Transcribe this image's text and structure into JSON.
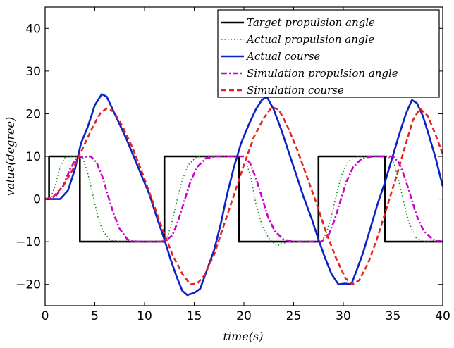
{
  "chart_data": {
    "type": "line",
    "xlabel": "time(s)",
    "ylabel": "value(degree)",
    "xlim": [
      0,
      40
    ],
    "ylim": [
      -25,
      45
    ],
    "x_ticks": [
      0,
      5,
      10,
      15,
      20,
      25,
      30,
      35,
      40
    ],
    "y_ticks": [
      -20,
      -10,
      0,
      10,
      20,
      30,
      40
    ],
    "x_tick_labels": [
      "0",
      "5",
      "10",
      "15",
      "20",
      "25",
      "30",
      "35",
      "40"
    ],
    "y_tick_labels": [
      "−20",
      "−10",
      "0",
      "10",
      "20",
      "30",
      "40"
    ],
    "legend_position": "top-right",
    "series": [
      {
        "name": "Target propulsion angle",
        "color": "#000000",
        "style": "solid",
        "points": [
          [
            0,
            0
          ],
          [
            0.4,
            0
          ],
          [
            0.4,
            10
          ],
          [
            3.5,
            10
          ],
          [
            3.5,
            -10
          ],
          [
            12,
            -10
          ],
          [
            12,
            10
          ],
          [
            19.5,
            10
          ],
          [
            19.5,
            -10
          ],
          [
            27.5,
            -10
          ],
          [
            27.5,
            10
          ],
          [
            34.2,
            10
          ],
          [
            34.2,
            -10
          ],
          [
            40,
            -10
          ]
        ]
      },
      {
        "name": "Actual propulsion angle",
        "color": "#1a8a1a",
        "style": "dotted",
        "points": [
          [
            0,
            0
          ],
          [
            0.6,
            0.5
          ],
          [
            1,
            3
          ],
          [
            1.5,
            7.5
          ],
          [
            2,
            9.8
          ],
          [
            3,
            10
          ],
          [
            3.8,
            9.6
          ],
          [
            4.3,
            6
          ],
          [
            4.8,
            1
          ],
          [
            5.3,
            -4
          ],
          [
            5.8,
            -7.5
          ],
          [
            6.5,
            -9.5
          ],
          [
            7.5,
            -10
          ],
          [
            11.5,
            -10
          ],
          [
            12.3,
            -9
          ],
          [
            12.8,
            -5
          ],
          [
            13.3,
            0
          ],
          [
            13.8,
            4.5
          ],
          [
            14.4,
            8
          ],
          [
            15.2,
            9.8
          ],
          [
            16,
            10
          ],
          [
            19.5,
            10
          ],
          [
            20.2,
            9
          ],
          [
            20.7,
            5
          ],
          [
            21.2,
            -1
          ],
          [
            21.8,
            -6
          ],
          [
            22.5,
            -9.2
          ],
          [
            23.3,
            -11
          ],
          [
            23.8,
            -10.5
          ],
          [
            24.5,
            -10
          ],
          [
            27.8,
            -10
          ],
          [
            28.3,
            -8
          ],
          [
            28.8,
            -4
          ],
          [
            29.3,
            1
          ],
          [
            29.8,
            5.5
          ],
          [
            30.5,
            8.8
          ],
          [
            31.3,
            10
          ],
          [
            34.5,
            10
          ],
          [
            35.1,
            8.5
          ],
          [
            35.6,
            4
          ],
          [
            36.1,
            -1
          ],
          [
            36.6,
            -5.5
          ],
          [
            37.3,
            -9
          ],
          [
            38.2,
            -10
          ],
          [
            40,
            -10
          ]
        ]
      },
      {
        "name": "Actual course",
        "color": "#0b22c4",
        "style": "solid",
        "points": [
          [
            0,
            0
          ],
          [
            1.5,
            0
          ],
          [
            2.3,
            2
          ],
          [
            3,
            7
          ],
          [
            3.6,
            13
          ],
          [
            4.3,
            17
          ],
          [
            5,
            22
          ],
          [
            5.7,
            24.6
          ],
          [
            6.2,
            24
          ],
          [
            6.8,
            21
          ],
          [
            7.5,
            17.5
          ],
          [
            8.2,
            14
          ],
          [
            9,
            9.5
          ],
          [
            9.7,
            5.5
          ],
          [
            10.5,
            1
          ],
          [
            11.2,
            -4
          ],
          [
            12,
            -9.5
          ],
          [
            12.6,
            -14
          ],
          [
            13.2,
            -18
          ],
          [
            13.8,
            -21.5
          ],
          [
            14.3,
            -22.5
          ],
          [
            15,
            -22
          ],
          [
            15.6,
            -21
          ],
          [
            16.3,
            -16.5
          ],
          [
            17,
            -12
          ],
          [
            17.7,
            -5.5
          ],
          [
            18.3,
            1
          ],
          [
            19,
            7.5
          ],
          [
            19.7,
            13
          ],
          [
            20.5,
            17.5
          ],
          [
            21.2,
            21
          ],
          [
            21.8,
            23.2
          ],
          [
            22.3,
            24
          ],
          [
            23,
            21
          ],
          [
            23.8,
            16
          ],
          [
            24.5,
            11
          ],
          [
            25.3,
            5.5
          ],
          [
            26,
            0.5
          ],
          [
            26.8,
            -4.5
          ],
          [
            27.5,
            -9.5
          ],
          [
            28.2,
            -14
          ],
          [
            28.8,
            -17.5
          ],
          [
            29.5,
            -20
          ],
          [
            30.2,
            -19.8
          ],
          [
            30.8,
            -20
          ],
          [
            31.3,
            -17
          ],
          [
            32,
            -12.5
          ],
          [
            32.7,
            -7
          ],
          [
            33.4,
            -1.5
          ],
          [
            34.2,
            4
          ],
          [
            34.9,
            9.5
          ],
          [
            35.6,
            15
          ],
          [
            36.3,
            20
          ],
          [
            36.9,
            23.2
          ],
          [
            37.4,
            22.5
          ],
          [
            38,
            19.5
          ],
          [
            38.6,
            15
          ],
          [
            39.3,
            9.5
          ],
          [
            40,
            3
          ]
        ]
      },
      {
        "name": "Simulation propulsion angle",
        "color": "#cc00cc",
        "style": "dashdot",
        "points": [
          [
            0,
            0
          ],
          [
            1,
            0.5
          ],
          [
            1.8,
            3
          ],
          [
            2.5,
            7
          ],
          [
            3.2,
            9.8
          ],
          [
            4.6,
            10
          ],
          [
            5.2,
            8.5
          ],
          [
            5.8,
            5
          ],
          [
            6.3,
            1
          ],
          [
            6.9,
            -3.5
          ],
          [
            7.5,
            -7
          ],
          [
            8.3,
            -9.5
          ],
          [
            9.3,
            -10
          ],
          [
            12,
            -10
          ],
          [
            12.8,
            -8.5
          ],
          [
            13.4,
            -5
          ],
          [
            14,
            -0.5
          ],
          [
            14.6,
            4
          ],
          [
            15.3,
            7.5
          ],
          [
            16.2,
            9.6
          ],
          [
            17.3,
            10
          ],
          [
            20,
            10
          ],
          [
            20.6,
            8.5
          ],
          [
            21.2,
            5
          ],
          [
            21.8,
            0.5
          ],
          [
            22.4,
            -4
          ],
          [
            23.1,
            -7.5
          ],
          [
            24,
            -9.5
          ],
          [
            25,
            -10
          ],
          [
            27.8,
            -10
          ],
          [
            28.5,
            -8.5
          ],
          [
            29.1,
            -5
          ],
          [
            29.7,
            -0.5
          ],
          [
            30.3,
            4
          ],
          [
            31,
            7.5
          ],
          [
            31.9,
            9.6
          ],
          [
            33,
            10
          ],
          [
            35,
            10
          ],
          [
            35.6,
            8.5
          ],
          [
            36.2,
            5
          ],
          [
            36.8,
            0.5
          ],
          [
            37.4,
            -4
          ],
          [
            38.1,
            -7.5
          ],
          [
            39,
            -9.5
          ],
          [
            40,
            -10
          ]
        ]
      },
      {
        "name": "Simulation course",
        "color": "#e82020",
        "style": "dashed",
        "points": [
          [
            0,
            0
          ],
          [
            0.8,
            0.5
          ],
          [
            1.8,
            3
          ],
          [
            2.8,
            7
          ],
          [
            3.8,
            12
          ],
          [
            4.8,
            17
          ],
          [
            5.6,
            20.3
          ],
          [
            6.2,
            21.2
          ],
          [
            6.9,
            20.5
          ],
          [
            7.8,
            17
          ],
          [
            8.8,
            12
          ],
          [
            9.8,
            6
          ],
          [
            10.8,
            -0.5
          ],
          [
            11.8,
            -7
          ],
          [
            12.8,
            -13
          ],
          [
            13.8,
            -17.5
          ],
          [
            14.6,
            -20
          ],
          [
            15.3,
            -19.8
          ],
          [
            16,
            -18
          ],
          [
            17,
            -13
          ],
          [
            18,
            -6
          ],
          [
            19,
            1
          ],
          [
            20,
            8
          ],
          [
            21,
            14.5
          ],
          [
            22,
            19
          ],
          [
            22.8,
            21.5
          ],
          [
            23.5,
            21
          ],
          [
            24.3,
            17.5
          ],
          [
            25.3,
            12
          ],
          [
            26.3,
            5.5
          ],
          [
            27.3,
            -1
          ],
          [
            28.3,
            -8
          ],
          [
            29.3,
            -14
          ],
          [
            30.2,
            -18.5
          ],
          [
            30.9,
            -20
          ],
          [
            31.6,
            -19
          ],
          [
            32.5,
            -15
          ],
          [
            33.5,
            -8.5
          ],
          [
            34.5,
            -1
          ],
          [
            35.5,
            6.5
          ],
          [
            36.3,
            13
          ],
          [
            37,
            18.5
          ],
          [
            37.7,
            21.2
          ],
          [
            38.5,
            19.5
          ],
          [
            39.3,
            15
          ],
          [
            40,
            10.5
          ]
        ]
      }
    ]
  }
}
